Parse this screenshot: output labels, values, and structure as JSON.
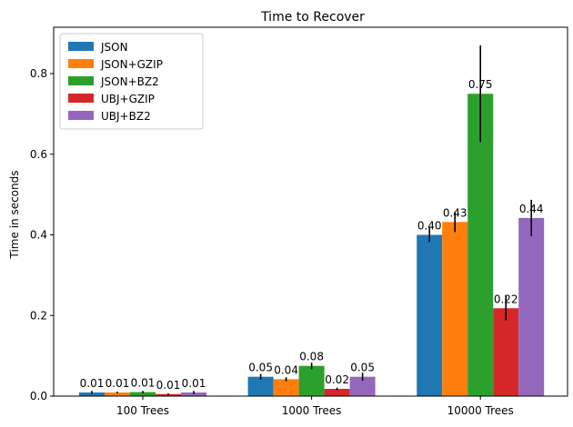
{
  "chart_data": {
    "type": "bar",
    "title": "Time to Recover",
    "xlabel": "",
    "ylabel": "Time in seconds",
    "ylim": [
      0,
      0.915
    ],
    "yticks": [
      0.0,
      0.2,
      0.4,
      0.6,
      0.8
    ],
    "ytick_labels": [
      "0.0",
      "0.2",
      "0.4",
      "0.6",
      "0.8"
    ],
    "categories": [
      "100 Trees",
      "1000 Trees",
      "10000 Trees"
    ],
    "grid": false,
    "legend_position": "top-left",
    "series": [
      {
        "name": "JSON",
        "color": "#1f77b4",
        "values": [
          0.009,
          0.048,
          0.4
        ],
        "errors": [
          0.004,
          0.007,
          0.018
        ],
        "labels": [
          "0.01",
          "0.05",
          "0.40"
        ]
      },
      {
        "name": "JSON+GZIP",
        "color": "#ff7f0e",
        "values": [
          0.009,
          0.042,
          0.432
        ],
        "errors": [
          0.002,
          0.005,
          0.025
        ],
        "labels": [
          "0.01",
          "0.04",
          "0.43"
        ]
      },
      {
        "name": "JSON+BZ2",
        "color": "#2ca02c",
        "values": [
          0.01,
          0.075,
          0.75
        ],
        "errors": [
          0.003,
          0.008,
          0.12
        ],
        "labels": [
          "0.01",
          "0.08",
          "0.75"
        ]
      },
      {
        "name": "UBJ+GZIP",
        "color": "#d62728",
        "values": [
          0.005,
          0.018,
          0.218
        ],
        "errors": [
          0.002,
          0.003,
          0.03
        ],
        "labels": [
          "0.01",
          "0.02",
          "0.22"
        ]
      },
      {
        "name": "UBJ+BZ2",
        "color": "#9467bd",
        "values": [
          0.009,
          0.048,
          0.442
        ],
        "errors": [
          0.004,
          0.01,
          0.045
        ],
        "labels": [
          "0.01",
          "0.05",
          "0.44"
        ]
      }
    ]
  }
}
